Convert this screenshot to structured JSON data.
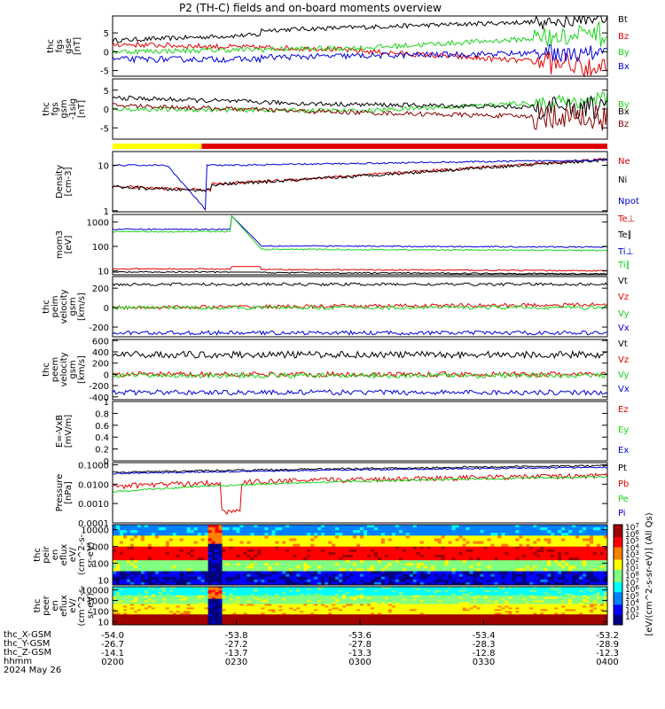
{
  "title": "P2 (TH-C) fields and on-board moments overview",
  "colors": {
    "black": "#000000",
    "red": "#e10000",
    "green": "#19d419",
    "blue": "#0000d8",
    "darkred": "#8a0000",
    "yellow": "#ffff00"
  },
  "chart_data": [
    {
      "type": "line",
      "id": "fgs_gse",
      "ylabel": "thc\nfgs\ngse\n[nT]",
      "ylim": [
        -6.5,
        9.5
      ],
      "yticks": [
        -5,
        0,
        5
      ],
      "series": [
        {
          "name": "Bt",
          "color": "black"
        },
        {
          "name": "Bz",
          "color": "red"
        },
        {
          "name": "By",
          "color": "green"
        },
        {
          "name": "Bx",
          "color": "blue"
        }
      ]
    },
    {
      "type": "line",
      "id": "fgs_gsm",
      "ylabel": "thc\nfgs\ngsm\n-1sig\n[nT]",
      "ylim": [
        -8,
        8
      ],
      "yticks": [
        -5,
        0,
        5
      ],
      "series": [
        {
          "name": "By",
          "color": "green"
        },
        {
          "name": "Bx",
          "color": "black"
        },
        {
          "name": "Bz",
          "color": "darkred"
        }
      ]
    },
    {
      "type": "bar",
      "id": "mode_bar",
      "segments": [
        {
          "from": 0,
          "to": 0.18,
          "color": "yellow"
        },
        {
          "from": 0.18,
          "to": 1,
          "color": "red"
        }
      ]
    },
    {
      "type": "line",
      "id": "density",
      "ylabel": "Density\n[cm-3]",
      "yscale": "log",
      "ylim": [
        0.95,
        20
      ],
      "yticks": [
        1,
        10
      ],
      "series": [
        {
          "name": "Ne",
          "color": "red"
        },
        {
          "name": "Ni",
          "color": "black"
        },
        {
          "name": "Npot",
          "color": "blue"
        }
      ]
    },
    {
      "type": "line",
      "id": "temperature",
      "ylabel": "mom3\n[eV]",
      "yscale": "log",
      "ylim": [
        7,
        2000
      ],
      "yticks": [
        10,
        100,
        1000
      ],
      "series": [
        {
          "name": "Te⊥",
          "color": "red"
        },
        {
          "name": "Te∥",
          "color": "black"
        },
        {
          "name": "Ti⊥",
          "color": "blue"
        },
        {
          "name": "Ti∥",
          "color": "green"
        }
      ]
    },
    {
      "type": "line",
      "id": "peim_velocity",
      "ylabel": "thc\npeim\nvelocity\ngsm\n[km/s]",
      "ylim": [
        -300,
        320
      ],
      "yticks": [
        -200,
        0,
        200
      ],
      "series": [
        {
          "name": "Vt",
          "color": "black"
        },
        {
          "name": "Vz",
          "color": "red"
        },
        {
          "name": "Vy",
          "color": "green"
        },
        {
          "name": "Vx",
          "color": "blue"
        }
      ]
    },
    {
      "type": "line",
      "id": "peem_velocity",
      "ylabel": "thc\npeem\nvelocity\ngsm\n[km/s]",
      "ylim": [
        -450,
        620
      ],
      "yticks": [
        -400,
        -200,
        0,
        200,
        400,
        600
      ],
      "series": [
        {
          "name": "Vt",
          "color": "black"
        },
        {
          "name": "Vz",
          "color": "red"
        },
        {
          "name": "Vy",
          "color": "green"
        },
        {
          "name": "Vx",
          "color": "blue"
        }
      ]
    },
    {
      "type": "line",
      "id": "efield",
      "ylabel": "E=-VxB\n[mV/m]",
      "ylim": [
        0,
        1.0
      ],
      "yticks": [
        0.0,
        0.2,
        0.4,
        0.6,
        0.8,
        1.0
      ],
      "series": [
        {
          "name": "Ez",
          "color": "red"
        },
        {
          "name": "Ey",
          "color": "green"
        },
        {
          "name": "Ex",
          "color": "blue"
        }
      ]
    },
    {
      "type": "line",
      "id": "pressure",
      "ylabel": "Pressure\n[nPa]",
      "yscale": "log",
      "ylim": [
        0.0001,
        0.13
      ],
      "yticks": [
        0.0001,
        0.001,
        0.01,
        0.1
      ],
      "ytick_labels": [
        "0.0001",
        "0.0010",
        "0.0100",
        "0.1000"
      ],
      "series": [
        {
          "name": "Pt",
          "color": "black"
        },
        {
          "name": "Pb",
          "color": "red"
        },
        {
          "name": "Pe",
          "color": "green"
        },
        {
          "name": "Pi",
          "color": "blue"
        }
      ]
    },
    {
      "type": "heatmap",
      "id": "peir_eflux",
      "ylabel": "thc\npeir\nen\neflux\neV/\n(cm^2-s-\nsr-eV)",
      "yscale": "log",
      "ylim": [
        5,
        20000
      ],
      "yticks": [
        10,
        100,
        1000,
        10000
      ]
    },
    {
      "type": "heatmap",
      "id": "peer_eflux",
      "ylabel": "thc\npeer\nen\neflux\neV/\n(cm^2-s-\nsr-eV)",
      "yscale": "log",
      "ylim": [
        5,
        20000
      ],
      "yticks": [
        10,
        100,
        1000,
        10000
      ]
    }
  ],
  "colorbar": {
    "label": "[eV/(cm^2-s-sr-eV)] (All Qs)",
    "exponents": [
      7,
      6,
      5,
      4,
      3,
      2,
      1,
      8,
      7,
      6,
      5,
      4,
      3,
      2
    ]
  },
  "x_axis": {
    "range": [
      "0200",
      "0400"
    ],
    "rows": [
      {
        "label": "thc_X-GSM",
        "values": [
          "-54.0",
          "-53.8",
          "-53.6",
          "-53.4",
          "-53.2"
        ]
      },
      {
        "label": "thc_Y-GSM",
        "values": [
          "-26.7",
          "-27.2",
          "-27.8",
          "-28.3",
          "-28.9"
        ]
      },
      {
        "label": "thc_Z-GSM",
        "values": [
          "-14.1",
          "-13.7",
          "-13.3",
          "-12.8",
          "-12.3"
        ]
      },
      {
        "label": "hhmm",
        "values": [
          "0200",
          "0230",
          "0300",
          "0330",
          "0400"
        ]
      }
    ],
    "date": "2024 May 26"
  }
}
